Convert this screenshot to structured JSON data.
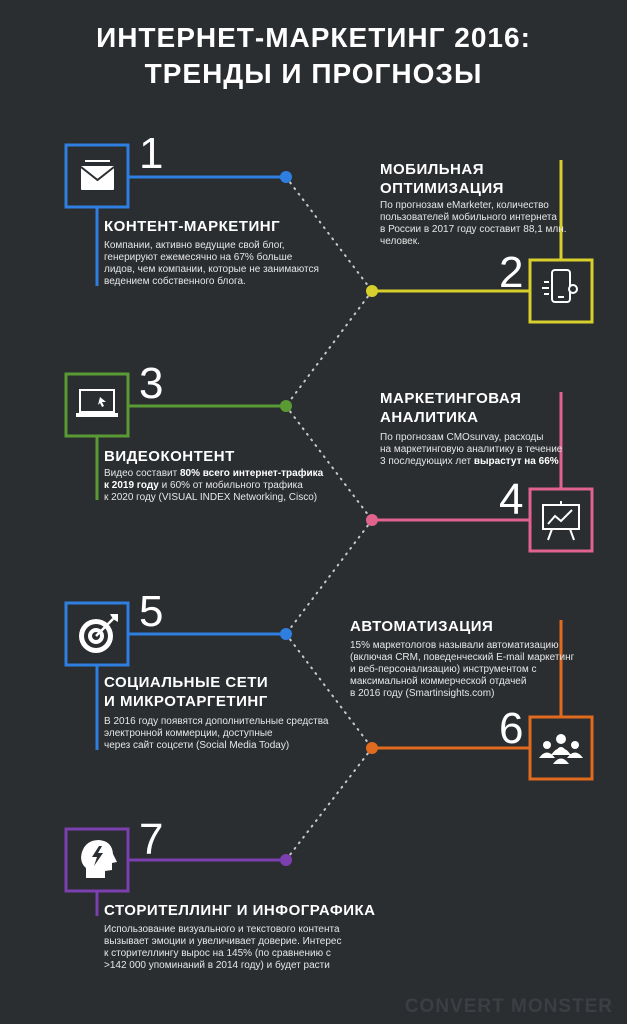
{
  "title": {
    "line1": "ИНТЕРНЕТ-МАРКЕТИНГ 2016:",
    "line2": "ТРЕНДЫ И ПРОГНОЗЫ"
  },
  "items": [
    {
      "number": "1",
      "heading": "КОНТЕНТ-МАРКЕТИНГ",
      "text_lines": [
        "Компании, активно ведущие свой блог,",
        "генерируют ежемесячно на 67% больше",
        "лидов, чем компании, которые не занимаются",
        "ведением собственного блога."
      ],
      "icon": "envelope-icon",
      "color": "#2e7fe0"
    },
    {
      "number": "2",
      "heading_lines": [
        "МОБИЛЬНАЯ",
        "ОПТИМИЗАЦИЯ"
      ],
      "text_lines": [
        "По прогнозам eMarketer, количество",
        "пользователей мобильного интернета",
        "в России в 2017 году составит 88,1 млн.",
        "человек."
      ],
      "icon": "smartphone-gear-icon",
      "color": "#d8cf2d"
    },
    {
      "number": "3",
      "heading": "ВИДЕОКОНТЕНТ",
      "text_parts": {
        "l1a": "Видео составит ",
        "l1b": "80% всего интернет-трафика",
        "l2a": "к 2019 году",
        "l2b": " и 60% от мобильного трафика",
        "l3": "к 2020 году (VISUAL INDEX Networking, Cisco)"
      },
      "icon": "laptop-icon",
      "color": "#5a9a32"
    },
    {
      "number": "4",
      "heading_lines": [
        "МАРКЕТИНГОВАЯ",
        "АНАЛИТИКА"
      ],
      "text_parts": {
        "l1": "По прогнозам CMOsurvay, расходы",
        "l2": "на маркетинговую аналитику в течение",
        "l3a": "3 последующих лет ",
        "l3b": "вырастут на 66%"
      },
      "icon": "presentation-chart-icon",
      "color": "#e0638e"
    },
    {
      "number": "5",
      "heading_lines": [
        "СОЦИАЛЬНЫЕ СЕТИ",
        "И МИКРОТАРГЕТИНГ"
      ],
      "text_lines": [
        "В 2016 году появятся дополнительные средства",
        "электронной коммерции, доступные",
        "через сайт соцсети (Social Media Today)"
      ],
      "icon": "target-icon",
      "color": "#2e7fe0"
    },
    {
      "number": "6",
      "heading": "АВТОМАТИЗАЦИЯ",
      "text_lines": [
        "15% маркетологов называли автоматизацию",
        "(включая CRM, поведенческий E-mail маркетинг",
        "и веб-персонализацию) инструментом с",
        "максимальной коммерческой отдачей",
        "в 2016 году (Smartinsights.com)"
      ],
      "icon": "group-icon",
      "color": "#e06a1e"
    },
    {
      "number": "7",
      "heading": "СТОРИТЕЛЛИНГ И ИНФОГРАФИКА",
      "text_lines": [
        "Использование визуального и текстового контента",
        "вызывает эмоции и увеличивает доверие. Интерес",
        "к сторителлингу вырос на 145% (по сравнению с",
        ">142 000 упоминаний в 2014 году) и будет расти"
      ],
      "icon": "head-lightning-icon",
      "color": "#7b3fb0"
    }
  ],
  "watermark": "CONVERT MONSTER"
}
